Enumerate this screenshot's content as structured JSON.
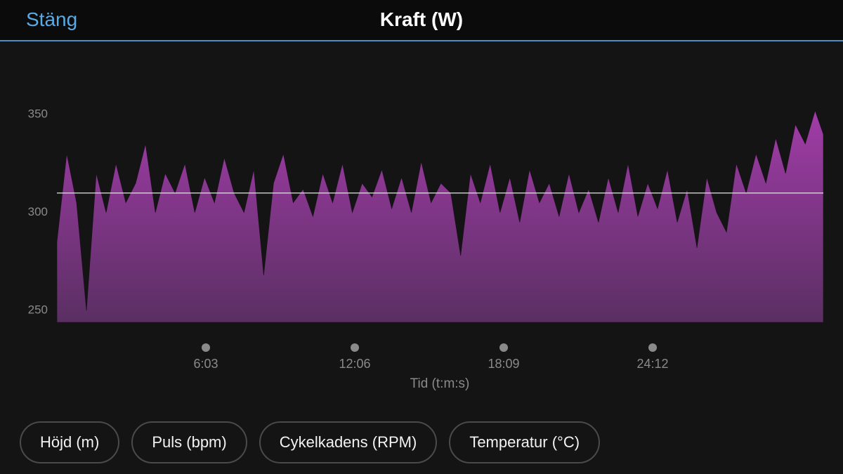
{
  "header": {
    "close": "Stäng",
    "title": "Kraft (W)"
  },
  "chart_data": {
    "type": "area",
    "x_label": "Tid (t:m:s)",
    "x": [
      0,
      24,
      48,
      72,
      96,
      120,
      144,
      168,
      192,
      216,
      240,
      264,
      288,
      312,
      336,
      360,
      384,
      408,
      432,
      456,
      480,
      504,
      528,
      552,
      576,
      600,
      624,
      648,
      672,
      696,
      720,
      744,
      768,
      792,
      816,
      840,
      864,
      888,
      912,
      936,
      960,
      984,
      1008,
      1032,
      1056,
      1080,
      1104,
      1128,
      1152,
      1176,
      1200,
      1224,
      1248,
      1272,
      1296,
      1320,
      1344,
      1368,
      1392,
      1416,
      1440,
      1464,
      1488,
      1512,
      1536,
      1560,
      1584,
      1608,
      1632,
      1656,
      1680,
      1704,
      1728,
      1752,
      1776,
      1800,
      1824,
      1848,
      1868
    ],
    "values": [
      285,
      330,
      305,
      250,
      320,
      300,
      325,
      305,
      315,
      335,
      300,
      320,
      310,
      325,
      300,
      318,
      305,
      328,
      310,
      300,
      322,
      268,
      315,
      330,
      305,
      312,
      298,
      320,
      305,
      325,
      300,
      315,
      308,
      322,
      302,
      318,
      300,
      326,
      305,
      315,
      310,
      278,
      320,
      305,
      325,
      300,
      318,
      295,
      322,
      305,
      315,
      298,
      320,
      300,
      312,
      295,
      318,
      300,
      325,
      298,
      315,
      302,
      322,
      295,
      312,
      282,
      318,
      300,
      290,
      325,
      310,
      330,
      315,
      338,
      320,
      345,
      335,
      352,
      340
    ],
    "color": "#a13ca8",
    "average": 310,
    "xlim": [
      0,
      1868
    ],
    "xticks": [
      {
        "value": 363,
        "label": "6:03"
      },
      {
        "value": 726,
        "label": "12:06"
      },
      {
        "value": 1089,
        "label": "18:09"
      },
      {
        "value": 1452,
        "label": "24:12"
      }
    ],
    "ylim": [
      244,
      387
    ],
    "yticks": [
      250,
      300,
      350
    ],
    "grid": false
  },
  "buttons": [
    "Höjd (m)",
    "Puls (bpm)",
    "Cykelkadens (RPM)",
    "Temperatur (°C)"
  ]
}
